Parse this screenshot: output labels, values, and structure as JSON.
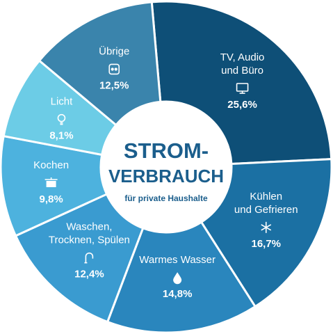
{
  "chart_data": {
    "type": "pie",
    "title": "STROM-",
    "title_line2": "VERBRAUCH",
    "subtitle": "für private Haushalte",
    "slices": [
      {
        "label": "TV, Audio",
        "label_line2": "und Büro",
        "value": 25.6,
        "value_label": "25,6%",
        "color": "#0e4f77",
        "icon": "monitor-icon"
      },
      {
        "label": "Kühlen",
        "label_line2": "und Gefrieren",
        "value": 16.7,
        "value_label": "16,7%",
        "color": "#1b70a3",
        "icon": "snowflake-icon"
      },
      {
        "label": "Warmes Wasser",
        "label_line2": "",
        "value": 14.8,
        "value_label": "14,8%",
        "color": "#2a86bd",
        "icon": "water-drop-icon"
      },
      {
        "label": "Waschen,",
        "label_line2": "Trocknen, Spülen",
        "value": 12.4,
        "value_label": "12,4%",
        "color": "#3a9bd0",
        "icon": "faucet-icon"
      },
      {
        "label": "Kochen",
        "label_line2": "",
        "value": 9.8,
        "value_label": "9,8%",
        "color": "#4db2de",
        "icon": "pot-icon"
      },
      {
        "label": "Licht",
        "label_line2": "",
        "value": 8.1,
        "value_label": "8,1%",
        "color": "#6ccce6",
        "icon": "lightbulb-icon"
      },
      {
        "label": "Übrige",
        "label_line2": "",
        "value": 12.5,
        "value_label": "12,5%",
        "color": "#3a84ac",
        "icon": "socket-icon"
      }
    ]
  }
}
